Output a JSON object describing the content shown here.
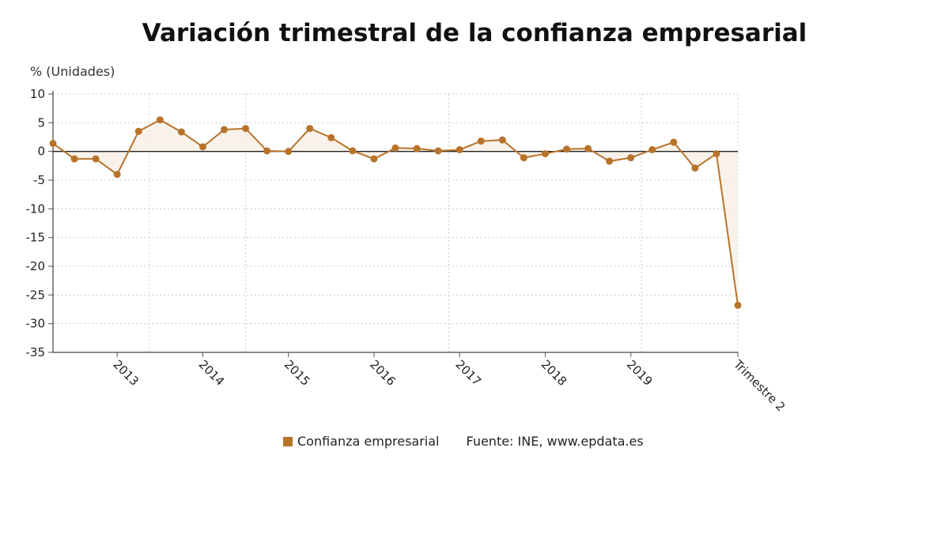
{
  "chart_data": {
    "type": "line",
    "title": "Variación trimestral de la confianza empresarial",
    "ylabel": "% (Unidades)",
    "xlabel": "",
    "ylim": [
      -35,
      10
    ],
    "y_ticks": [
      10,
      5,
      0,
      -5,
      -10,
      -15,
      -20,
      -25,
      -30,
      -35
    ],
    "x_tick_labels": [
      "2013",
      "2014",
      "2015",
      "2016",
      "2017",
      "2018",
      "2019",
      "Trimestre 2"
    ],
    "x_tick_label_index": [
      3,
      7,
      11,
      15,
      19,
      23,
      27,
      32
    ],
    "x_gridline_positions": [
      4.5,
      9,
      18.5,
      27.5
    ],
    "grid": true,
    "legend_position": "bottom",
    "series": [
      {
        "name": "Confianza empresarial",
        "color": "#b8732b",
        "values": [
          1.4,
          -1.3,
          -1.3,
          -4.0,
          3.5,
          5.5,
          3.4,
          0.8,
          3.8,
          4.0,
          0.1,
          0.0,
          4.0,
          2.4,
          0.1,
          -1.3,
          0.6,
          0.5,
          0.1,
          0.3,
          1.8,
          2.0,
          -1.1,
          -0.4,
          0.4,
          0.5,
          -1.7,
          -1.1,
          0.3,
          1.6,
          -2.9,
          -0.4,
          -26.8
        ]
      }
    ]
  },
  "legend": {
    "label": "Confianza empresarial",
    "source": "Fuente: INE, www.epdata.es"
  }
}
